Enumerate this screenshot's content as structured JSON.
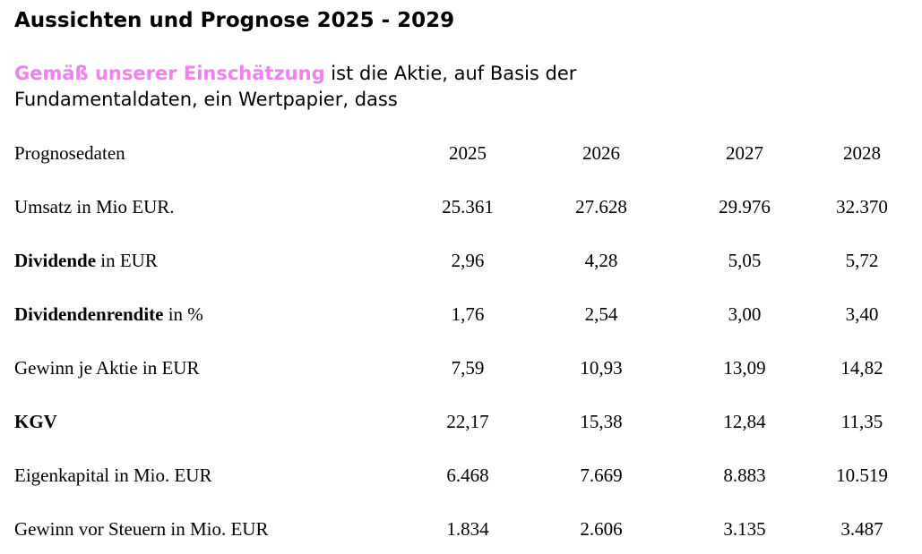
{
  "title": "Aussichten und Prognose 2025 - 2029",
  "intro": {
    "highlight": "Gemäß unserer Einschätzung",
    "text": " ist die Aktie, auf Basis der Fundamentaldaten, ein Wertpapier, dass"
  },
  "table": {
    "header": {
      "label": "Prognosedaten",
      "years": [
        "2025",
        "2026",
        "2027",
        "2028"
      ]
    },
    "rows": [
      {
        "bold": "",
        "rest": "Umsatz in Mio EUR.",
        "values": [
          "25.361",
          "27.628",
          "29.976",
          "32.370"
        ]
      },
      {
        "bold": "Dividende",
        "rest": " in EUR",
        "values": [
          "2,96",
          "4,28",
          "5,05",
          "5,72"
        ]
      },
      {
        "bold": "Dividendenrendite",
        "rest": " in %",
        "values": [
          "1,76",
          "2,54",
          "3,00",
          "3,40"
        ]
      },
      {
        "bold": "",
        "rest": "Gewinn je Aktie in EUR",
        "values": [
          "7,59",
          "10,93",
          "13,09",
          "14,82"
        ]
      },
      {
        "bold": "KGV",
        "rest": "",
        "values": [
          "22,17",
          "15,38",
          "12,84",
          "11,35"
        ]
      },
      {
        "bold": "",
        "rest": "Eigenkapital in Mio. EUR",
        "values": [
          "6.468",
          "7.669",
          "8.883",
          "10.519"
        ]
      },
      {
        "bold": "",
        "rest": "Gewinn vor Steuern in Mio. EUR",
        "values": [
          "1.834",
          "2.606",
          "3.135",
          "3.487"
        ]
      }
    ]
  }
}
